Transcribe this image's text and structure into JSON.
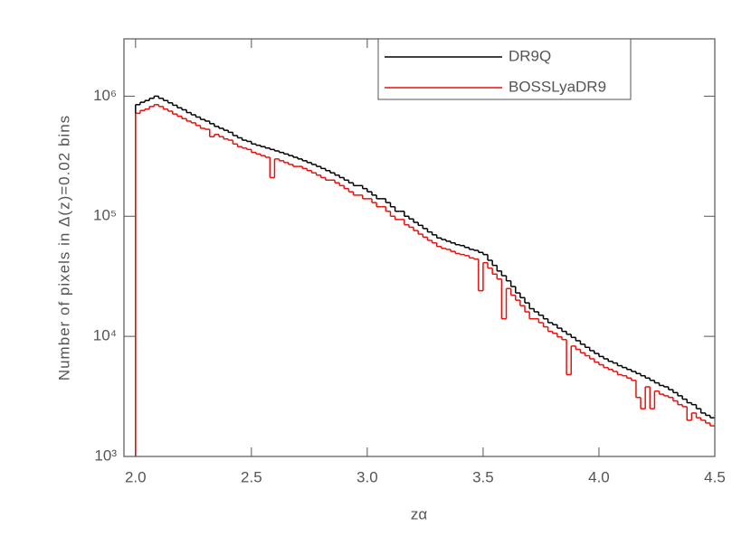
{
  "chart_data": {
    "type": "histogram",
    "x_label": "zα",
    "y_label": "Number of pixels in Δ(z)=0.02 bins",
    "xlim": [
      1.95,
      4.5
    ],
    "ylim": [
      1000,
      3000000
    ],
    "log_y": true,
    "legend": "top-right",
    "xticks": [
      {
        "value": 2,
        "label": "2.0"
      },
      2.5,
      {
        "value": 3,
        "label": "3.0"
      },
      3.5,
      {
        "value": 4,
        "label": "4.0"
      },
      4.5
    ],
    "yticks": [
      {
        "value": 1000,
        "label": "10³"
      },
      {
        "value": 10000,
        "label": "10⁴"
      },
      {
        "value": 100000,
        "label": "10⁵"
      },
      {
        "value": 1000000,
        "label": "10⁶"
      }
    ],
    "bins": [
      2.0,
      2.02,
      2.04,
      2.06,
      2.08,
      2.1,
      2.12,
      2.14,
      2.16,
      2.18,
      2.2,
      2.22,
      2.24,
      2.26,
      2.28,
      2.3,
      2.32,
      2.34,
      2.36,
      2.38,
      2.4,
      2.42,
      2.44,
      2.46,
      2.48,
      2.5,
      2.52,
      2.54,
      2.56,
      2.58,
      2.6,
      2.62,
      2.64,
      2.66,
      2.68,
      2.7,
      2.72,
      2.74,
      2.76,
      2.78,
      2.8,
      2.82,
      2.84,
      2.86,
      2.88,
      2.9,
      2.92,
      2.94,
      2.96,
      2.98,
      3.0,
      3.02,
      3.04,
      3.06,
      3.08,
      3.1,
      3.12,
      3.14,
      3.16,
      3.18,
      3.2,
      3.22,
      3.24,
      3.26,
      3.28,
      3.3,
      3.32,
      3.34,
      3.36,
      3.38,
      3.4,
      3.42,
      3.44,
      3.46,
      3.48,
      3.5,
      3.52,
      3.54,
      3.56,
      3.58,
      3.6,
      3.62,
      3.64,
      3.66,
      3.68,
      3.7,
      3.72,
      3.74,
      3.76,
      3.78,
      3.8,
      3.82,
      3.84,
      3.86,
      3.88,
      3.9,
      3.92,
      3.94,
      3.96,
      3.98,
      4.0,
      4.02,
      4.04,
      4.06,
      4.08,
      4.1,
      4.12,
      4.14,
      4.16,
      4.18,
      4.2,
      4.22,
      4.24,
      4.26,
      4.28,
      4.3,
      4.32,
      4.34,
      4.36,
      4.38,
      4.4,
      4.42,
      4.44,
      4.46,
      4.48,
      4.5
    ],
    "series": [
      {
        "name": "DR9Q",
        "color": "#000000",
        "values": [
          850000,
          890000,
          920000,
          960000,
          1000000,
          960000,
          920000,
          880000,
          840000,
          800000,
          770000,
          730000,
          700000,
          670000,
          640000,
          620000,
          590000,
          560000,
          540000,
          520000,
          500000,
          470000,
          450000,
          430000,
          420000,
          400000,
          390000,
          380000,
          370000,
          360000,
          350000,
          340000,
          330000,
          320000,
          310000,
          300000,
          290000,
          280000,
          270000,
          260000,
          250000,
          240000,
          230000,
          220000,
          210000,
          200000,
          190000,
          180000,
          180000,
          170000,
          160000,
          150000,
          140000,
          140000,
          130000,
          120000,
          110000,
          110000,
          100000,
          95000,
          89000,
          84000,
          79000,
          74000,
          70000,
          66000,
          64000,
          62000,
          60000,
          58000,
          57000,
          55000,
          53000,
          52000,
          50000,
          48000,
          43000,
          39000,
          35000,
          32000,
          29000,
          26000,
          23000,
          21000,
          19000,
          17000,
          16000,
          15000,
          14000,
          13000,
          12500,
          11700,
          11000,
          10400,
          9800,
          9200,
          8600,
          8100,
          7600,
          7200,
          6800,
          6500,
          6200,
          6000,
          5700,
          5500,
          5300,
          5100,
          4900,
          4700,
          4500,
          4300,
          4100,
          3900,
          3800,
          3600,
          3400,
          3200,
          3000,
          2800,
          2700,
          2500,
          2300,
          2200,
          2100
        ]
      },
      {
        "name": "BOSSLyaDR9",
        "color": "#e8100c",
        "values": [
          720000,
          760000,
          780000,
          820000,
          850000,
          820000,
          780000,
          750000,
          710000,
          680000,
          650000,
          620000,
          600000,
          570000,
          540000,
          530000,
          460000,
          480000,
          460000,
          440000,
          430000,
          400000,
          380000,
          370000,
          360000,
          340000,
          330000,
          320000,
          310000,
          210000,
          300000,
          290000,
          280000,
          270000,
          260000,
          260000,
          250000,
          240000,
          230000,
          220000,
          210000,
          200000,
          200000,
          190000,
          180000,
          170000,
          160000,
          150000,
          150000,
          140000,
          140000,
          130000,
          120000,
          120000,
          110000,
          100000,
          94000,
          94000,
          85000,
          81000,
          76000,
          71000,
          67000,
          63000,
          60000,
          56000,
          54000,
          53000,
          51000,
          49000,
          48000,
          47000,
          45000,
          44000,
          24000,
          41000,
          37000,
          33000,
          30000,
          14000,
          25000,
          22000,
          20000,
          18000,
          16000,
          14000,
          14000,
          13000,
          12000,
          11000,
          10600,
          9900,
          9400,
          4800,
          8300,
          7800,
          7300,
          6900,
          6500,
          6100,
          5800,
          5500,
          5300,
          5100,
          4800,
          4700,
          4500,
          4300,
          3100,
          2500,
          3800,
          2500,
          3500,
          3300,
          3200,
          3100,
          2900,
          2700,
          2600,
          2000,
          2300,
          2100,
          2000,
          1900,
          1800
        ]
      }
    ]
  }
}
